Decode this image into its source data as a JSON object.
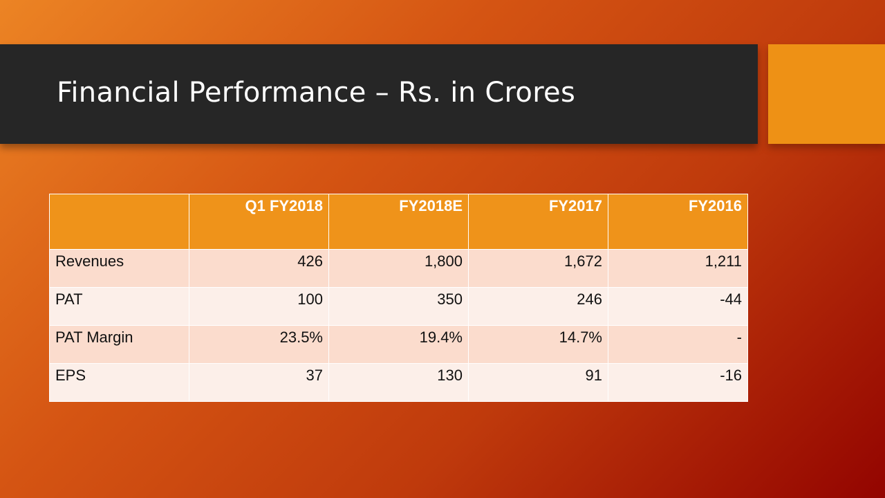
{
  "header": {
    "title": "Financial Performance – Rs. in Crores"
  },
  "table": {
    "columns": [
      "Q1 FY2018",
      "FY2018E",
      "FY2017",
      "FY2016"
    ],
    "rows": [
      {
        "label": "Revenues",
        "cells": [
          "426",
          "1,800",
          "1,672",
          "1,211"
        ]
      },
      {
        "label": "PAT",
        "cells": [
          "100",
          "350",
          "246",
          "-44"
        ]
      },
      {
        "label": "PAT Margin",
        "cells": [
          "23.5%",
          "19.4%",
          "14.7%",
          "-"
        ]
      },
      {
        "label": "EPS",
        "cells": [
          "37",
          "130",
          "91",
          "-16"
        ]
      }
    ]
  }
}
